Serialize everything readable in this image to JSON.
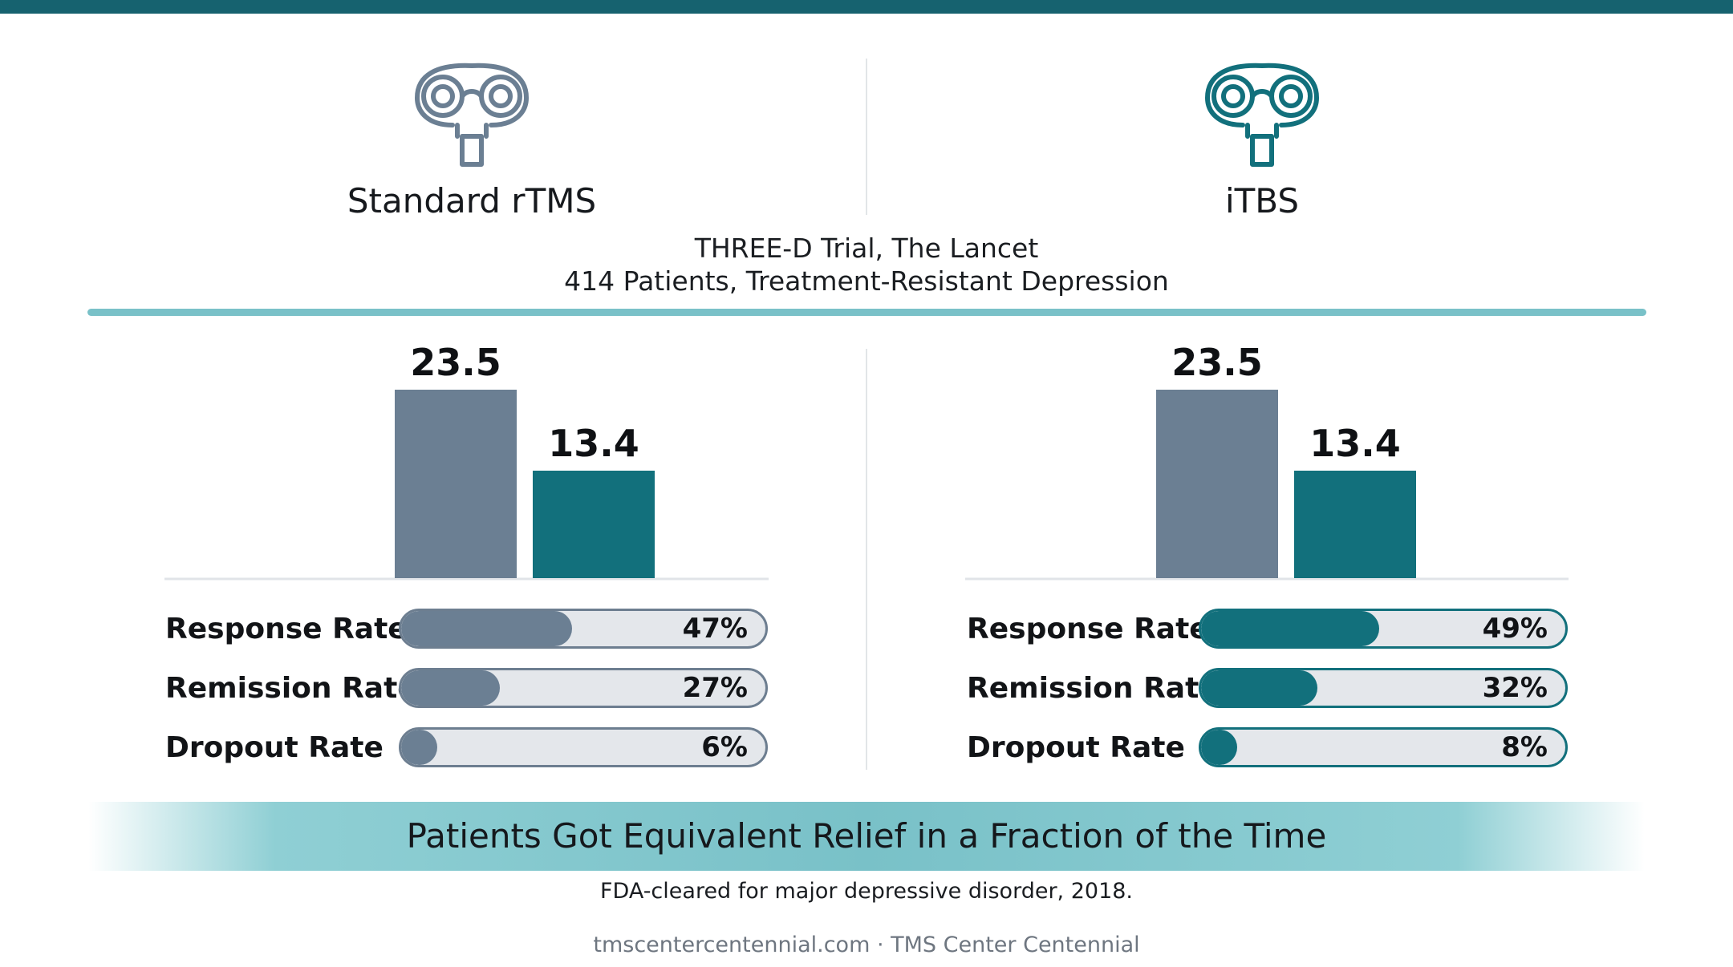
{
  "colors": {
    "gray": "#6b7f93",
    "teal": "#12707c",
    "accent": "#79c1c8",
    "top_bar": "#16626f"
  },
  "methods": [
    {
      "name": "Standard rTMS",
      "icon": "brain-coil-icon",
      "color": "#6b7f93"
    },
    {
      "name": "iTBS",
      "icon": "brain-coil-icon",
      "color": "#12707c"
    }
  ],
  "trial": {
    "line1": "THREE-D Trial, The Lancet",
    "line2": "414 Patients, Treatment-Resistant Depression"
  },
  "chart_data": [
    {
      "type": "bar",
      "values": [
        23.5,
        13.4
      ],
      "colors": [
        "#6b7f93",
        "#12707c"
      ],
      "value_labels": [
        "23.5",
        "13.4"
      ],
      "ylim": [
        0,
        23.5
      ],
      "metrics": [
        {
          "label": "Response Rate",
          "value": 47,
          "display": "47%"
        },
        {
          "label": "Remission Rate",
          "value": 27,
          "display": "27%"
        },
        {
          "label": "Dropout Rate",
          "value": 6,
          "display": "6%"
        }
      ]
    },
    {
      "type": "bar",
      "values": [
        23.5,
        13.4
      ],
      "colors": [
        "#6b7f93",
        "#12707c"
      ],
      "value_labels": [
        "23.5",
        "13.4"
      ],
      "ylim": [
        0,
        23.5
      ],
      "metrics": [
        {
          "label": "Response Rate",
          "value": 49,
          "display": "49%"
        },
        {
          "label": "Remission Rate",
          "value": 32,
          "display": "32%"
        },
        {
          "label": "Dropout Rate",
          "value": 8,
          "display": "8%"
        }
      ]
    }
  ],
  "banner": {
    "text": "Patients Got Equivalent Relief in a Fraction of the Time"
  },
  "footnote": "FDA-cleared for major depressive disorder, 2018.",
  "footer": "tmscentercentennial.com · TMS Center Centennial"
}
